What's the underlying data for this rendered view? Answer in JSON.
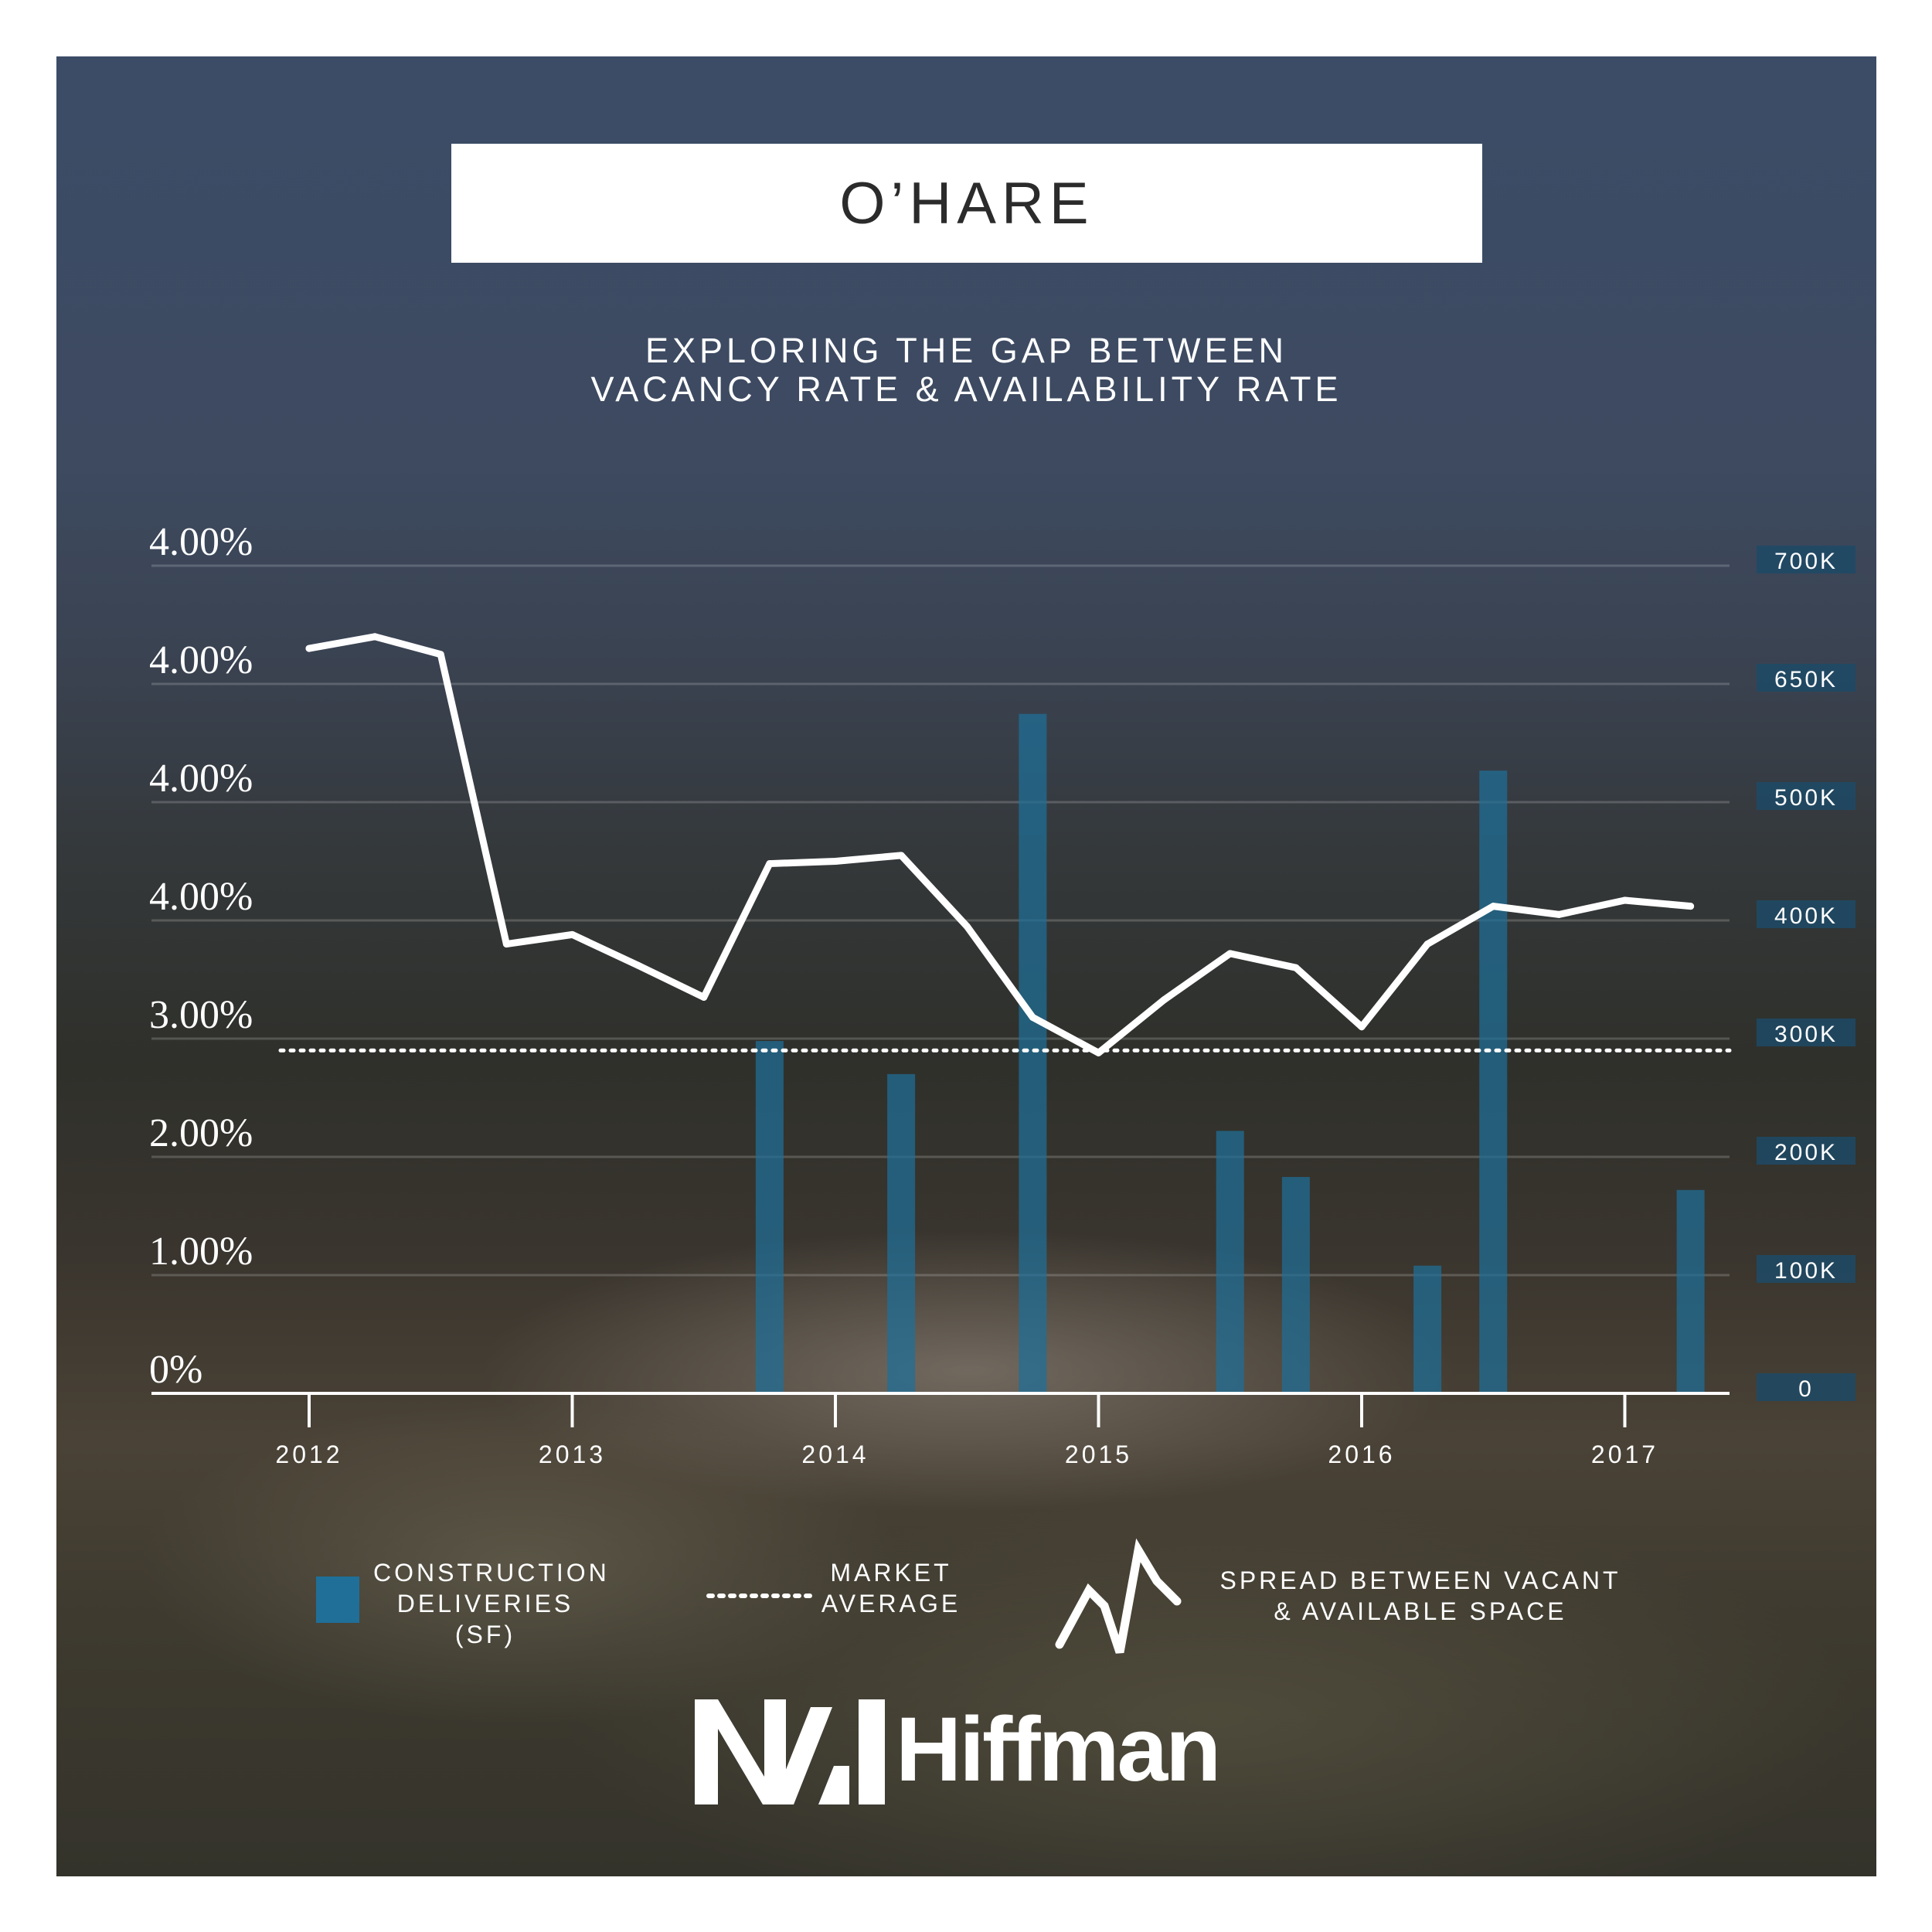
{
  "header": {
    "title": "O’HARE",
    "subtitle_line1": "EXPLORING THE GAP BETWEEN",
    "subtitle_line2": "VACANCY RATE & AVAILABILITY RATE"
  },
  "chart_data": {
    "type": "line",
    "title": "O’HARE",
    "subtitle": "EXPLORING THE GAP BETWEEN VACANCY RATE & AVAILABILITY RATE",
    "x_tick_labels": [
      "2012",
      "2013",
      "2014",
      "2015",
      "2016",
      "2017"
    ],
    "y_left_tick_labels": [
      "0%",
      "1.00%",
      "2.00%",
      "3.00%",
      "4.00%",
      "4.00%",
      "4.00%",
      "4.00%"
    ],
    "y_right_tick_labels": [
      "0",
      "100K",
      "200K",
      "300K",
      "400K",
      "500K",
      "650K",
      "700K"
    ],
    "grid": true,
    "colors": {
      "line": "#ffffff",
      "bars": "#1f6f99",
      "market_average": "#ffffff",
      "right_axis_label_bg": "#1d4a66"
    },
    "market_average": {
      "value": 2.9,
      "unit": "%"
    },
    "series": [
      {
        "name": "SPREAD BETWEEN VACANT & AVAILABLE SPACE",
        "type": "line",
        "axis": "left",
        "x": [
          2012.0,
          2012.25,
          2012.5,
          2012.75,
          2013.0,
          2013.25,
          2013.5,
          2013.75,
          2014.0,
          2014.25,
          2014.5,
          2014.75,
          2015.0,
          2015.25,
          2015.5,
          2015.75,
          2016.0,
          2016.25,
          2016.5,
          2016.75,
          2017.0,
          2017.25
        ],
        "values": [
          6.3,
          6.4,
          6.25,
          3.8,
          3.88,
          3.62,
          3.35,
          4.48,
          4.5,
          4.55,
          3.95,
          3.18,
          2.88,
          3.33,
          3.72,
          3.6,
          3.1,
          3.8,
          4.12,
          4.05,
          4.17,
          4.12
        ]
      },
      {
        "name": "CONSTRUCTION DELIVERIES (SF)",
        "type": "bar",
        "axis": "right",
        "x": [
          2013.75,
          2014.25,
          2014.75,
          2015.5,
          2015.75,
          2016.25,
          2016.5,
          2017.25
        ],
        "values": [
          298000,
          270000,
          612000,
          222000,
          183000,
          108000,
          540000,
          172000
        ]
      }
    ],
    "legend": {
      "placement": "bottom",
      "construction_line1": "CONSTRUCTION",
      "construction_line2": "DELIVERIES",
      "construction_line3": "(SF)",
      "market_line1": "MARKET",
      "market_line2": "AVERAGE",
      "spread_line1": "SPREAD BETWEEN VACANT",
      "spread_line2": "& AVAILABLE SPACE"
    }
  },
  "logo": {
    "word": "Hiffman"
  }
}
